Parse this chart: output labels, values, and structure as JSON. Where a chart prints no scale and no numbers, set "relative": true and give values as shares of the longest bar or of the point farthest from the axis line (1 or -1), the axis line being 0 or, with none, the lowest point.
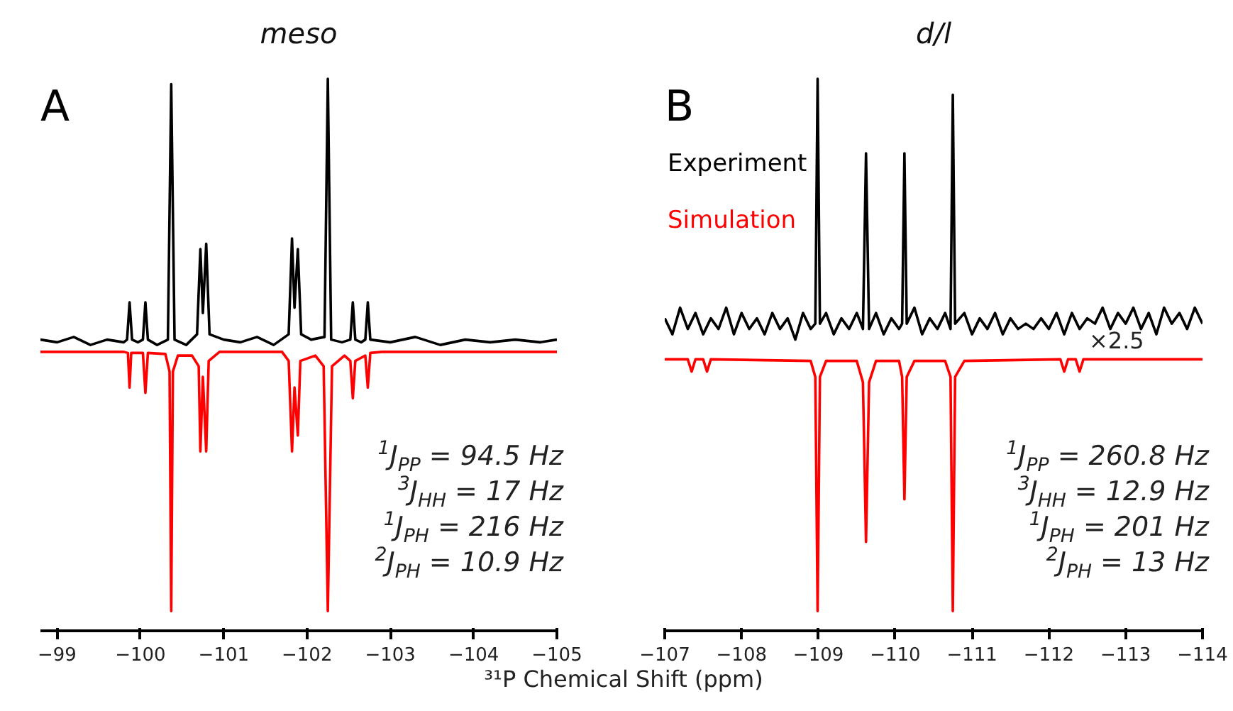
{
  "chart_data": [
    {
      "type": "line",
      "title": "meso",
      "xlabel": "³¹P Chemical Shift (ppm)",
      "relative": true,
      "xlim": [
        -98.8,
        -105
      ],
      "xticks": [
        {
          "value": -99,
          "label": "−99"
        },
        {
          "value": -100,
          "label": "−100"
        },
        {
          "value": -101,
          "label": "−101"
        },
        {
          "value": -102,
          "label": "−102"
        },
        {
          "value": -103,
          "label": "−103"
        },
        {
          "value": -104,
          "label": "−104"
        },
        {
          "value": -105,
          "label": "−105"
        }
      ],
      "series": [
        {
          "color": "#000000",
          "x": [
            -98.8,
            -99.0,
            -99.2,
            -99.4,
            -99.6,
            -99.8,
            -99.84,
            -99.87,
            -99.9,
            -99.97,
            -100.03,
            -100.06,
            -100.09,
            -100.2,
            -100.33,
            -100.37,
            -100.41,
            -100.55,
            -100.68,
            -100.72,
            -100.75,
            -100.79,
            -100.83,
            -101.0,
            -101.2,
            -101.4,
            -101.6,
            -101.78,
            -101.82,
            -101.85,
            -101.89,
            -101.93,
            -102.05,
            -102.21,
            -102.25,
            -102.29,
            -102.42,
            -102.52,
            -102.55,
            -102.58,
            -102.65,
            -102.7,
            -102.73,
            -102.76,
            -103.0,
            -103.3,
            -103.6,
            -103.9,
            -104.2,
            -104.5,
            -104.8,
            -105.0
          ],
          "values": [
            0.51,
            0.505,
            0.515,
            0.5,
            0.51,
            0.505,
            0.51,
            0.58,
            0.51,
            0.505,
            0.51,
            0.58,
            0.51,
            0.5,
            0.51,
            0.99,
            0.51,
            0.5,
            0.52,
            0.68,
            0.56,
            0.69,
            0.52,
            0.51,
            0.505,
            0.515,
            0.5,
            0.52,
            0.7,
            0.57,
            0.68,
            0.52,
            0.51,
            0.515,
            1.0,
            0.51,
            0.505,
            0.51,
            0.58,
            0.51,
            0.505,
            0.51,
            0.58,
            0.51,
            0.505,
            0.515,
            0.5,
            0.51,
            0.505,
            0.51,
            0.505,
            0.51
          ]
        },
        {
          "color": "#ff0000",
          "x": [
            -98.8,
            -99.8,
            -99.85,
            -99.87,
            -99.89,
            -100.03,
            -100.06,
            -100.09,
            -100.3,
            -100.35,
            -100.37,
            -100.39,
            -100.45,
            -100.62,
            -100.7,
            -100.72,
            -100.75,
            -100.79,
            -100.82,
            -100.95,
            -101.7,
            -101.78,
            -101.82,
            -101.85,
            -101.89,
            -101.92,
            -102.1,
            -102.2,
            -102.25,
            -102.3,
            -102.45,
            -102.52,
            -102.55,
            -102.58,
            -102.7,
            -102.73,
            -102.76,
            -102.9,
            -105.0
          ],
          "values": [
            0.487,
            0.487,
            0.485,
            0.42,
            0.485,
            0.485,
            0.41,
            0.485,
            0.483,
            0.45,
            0.0,
            0.45,
            0.48,
            0.48,
            0.46,
            0.3,
            0.44,
            0.3,
            0.47,
            0.487,
            0.487,
            0.47,
            0.3,
            0.42,
            0.33,
            0.47,
            0.48,
            0.46,
            0.0,
            0.46,
            0.48,
            0.47,
            0.4,
            0.47,
            0.48,
            0.42,
            0.485,
            0.487,
            0.487
          ]
        }
      ],
      "annotations": [
        "A",
        "$^{1}$J$_{PP}$ = 94.5 Hz",
        "$^{3}$J$_{HH}$ = 17 Hz",
        "$^{1}$J$_{PH}$ = 216 Hz",
        "$^{2}$J$_{PH}$ = 10.9 Hz"
      ]
    },
    {
      "type": "line",
      "title": "d/l",
      "relative": true,
      "xlim": [
        -107,
        -114
      ],
      "xticks": [
        {
          "value": -107,
          "label": "−107"
        },
        {
          "value": -108,
          "label": "−108"
        },
        {
          "value": -109,
          "label": "−109"
        },
        {
          "value": -110,
          "label": "−110"
        },
        {
          "value": -111,
          "label": "−111"
        },
        {
          "value": -112,
          "label": "−112"
        },
        {
          "value": -113,
          "label": "−113"
        },
        {
          "value": -114,
          "label": "−114"
        }
      ],
      "series": [
        {
          "name": "Experiment",
          "color": "#000000",
          "x": [
            -107.0,
            -107.1,
            -107.2,
            -107.3,
            -107.4,
            -107.5,
            -107.6,
            -107.7,
            -107.8,
            -107.9,
            -108.0,
            -108.1,
            -108.2,
            -108.3,
            -108.4,
            -108.5,
            -108.6,
            -108.7,
            -108.8,
            -108.9,
            -108.96,
            -108.99,
            -109.02,
            -109.1,
            -109.2,
            -109.3,
            -109.4,
            -109.5,
            -109.58,
            -109.62,
            -109.66,
            -109.75,
            -109.85,
            -109.95,
            -110.05,
            -110.09,
            -110.12,
            -110.15,
            -110.25,
            -110.35,
            -110.45,
            -110.55,
            -110.65,
            -110.72,
            -110.75,
            -110.78,
            -110.9,
            -111.0,
            -111.1,
            -111.2,
            -111.3,
            -111.4,
            -111.5,
            -111.6,
            -111.7,
            -111.8,
            -111.9,
            -112.0,
            -112.1,
            -112.2,
            -112.3,
            -112.4,
            -112.5,
            -112.6,
            -112.7,
            -112.8,
            -112.9,
            -113.0,
            -113.1,
            -113.2,
            -113.3,
            -113.4,
            -113.5,
            -113.6,
            -113.7,
            -113.8,
            -113.9,
            -114.0
          ],
          "values": [
            0.55,
            0.52,
            0.57,
            0.53,
            0.56,
            0.52,
            0.55,
            0.53,
            0.57,
            0.52,
            0.56,
            0.53,
            0.55,
            0.52,
            0.56,
            0.53,
            0.55,
            0.51,
            0.56,
            0.53,
            0.54,
            1.0,
            0.54,
            0.56,
            0.52,
            0.55,
            0.53,
            0.56,
            0.53,
            0.86,
            0.53,
            0.56,
            0.52,
            0.55,
            0.53,
            0.54,
            0.86,
            0.54,
            0.57,
            0.52,
            0.55,
            0.53,
            0.56,
            0.53,
            0.97,
            0.54,
            0.56,
            0.52,
            0.55,
            0.53,
            0.56,
            0.52,
            0.55,
            0.53,
            0.54,
            0.53,
            0.55,
            0.53,
            0.56,
            0.52,
            0.56,
            0.53,
            0.55,
            0.54,
            0.57,
            0.53,
            0.56,
            0.54,
            0.57,
            0.53,
            0.56,
            0.52,
            0.57,
            0.54,
            0.56,
            0.53,
            0.57,
            0.54
          ]
        },
        {
          "name": "Simulation",
          "color": "#ff0000",
          "x": [
            -107.0,
            -107.3,
            -107.35,
            -107.4,
            -107.5,
            -107.55,
            -107.6,
            -108.9,
            -108.96,
            -108.99,
            -109.02,
            -109.1,
            -109.5,
            -109.58,
            -109.62,
            -109.66,
            -109.75,
            -110.05,
            -110.09,
            -110.12,
            -110.15,
            -110.25,
            -110.65,
            -110.72,
            -110.75,
            -110.78,
            -110.9,
            -112.15,
            -112.2,
            -112.25,
            -112.35,
            -112.4,
            -112.45,
            -114.0
          ],
          "values": [
            0.473,
            0.473,
            0.45,
            0.473,
            0.473,
            0.45,
            0.473,
            0.47,
            0.44,
            0.0,
            0.44,
            0.47,
            0.47,
            0.43,
            0.13,
            0.43,
            0.47,
            0.47,
            0.44,
            0.21,
            0.44,
            0.47,
            0.47,
            0.44,
            0.0,
            0.44,
            0.47,
            0.473,
            0.45,
            0.473,
            0.473,
            0.45,
            0.473,
            0.473
          ]
        }
      ],
      "annotations": [
        "B",
        "×2.5",
        "$^{1}$J$_{PP}$ = 260.8 Hz",
        "$^{3}$J$_{HH}$ = 12.9 Hz",
        "$^{1}$J$_{PH}$ = 201 Hz",
        "$^{2}$J$_{PH}$ = 13 Hz"
      ]
    }
  ]
}
